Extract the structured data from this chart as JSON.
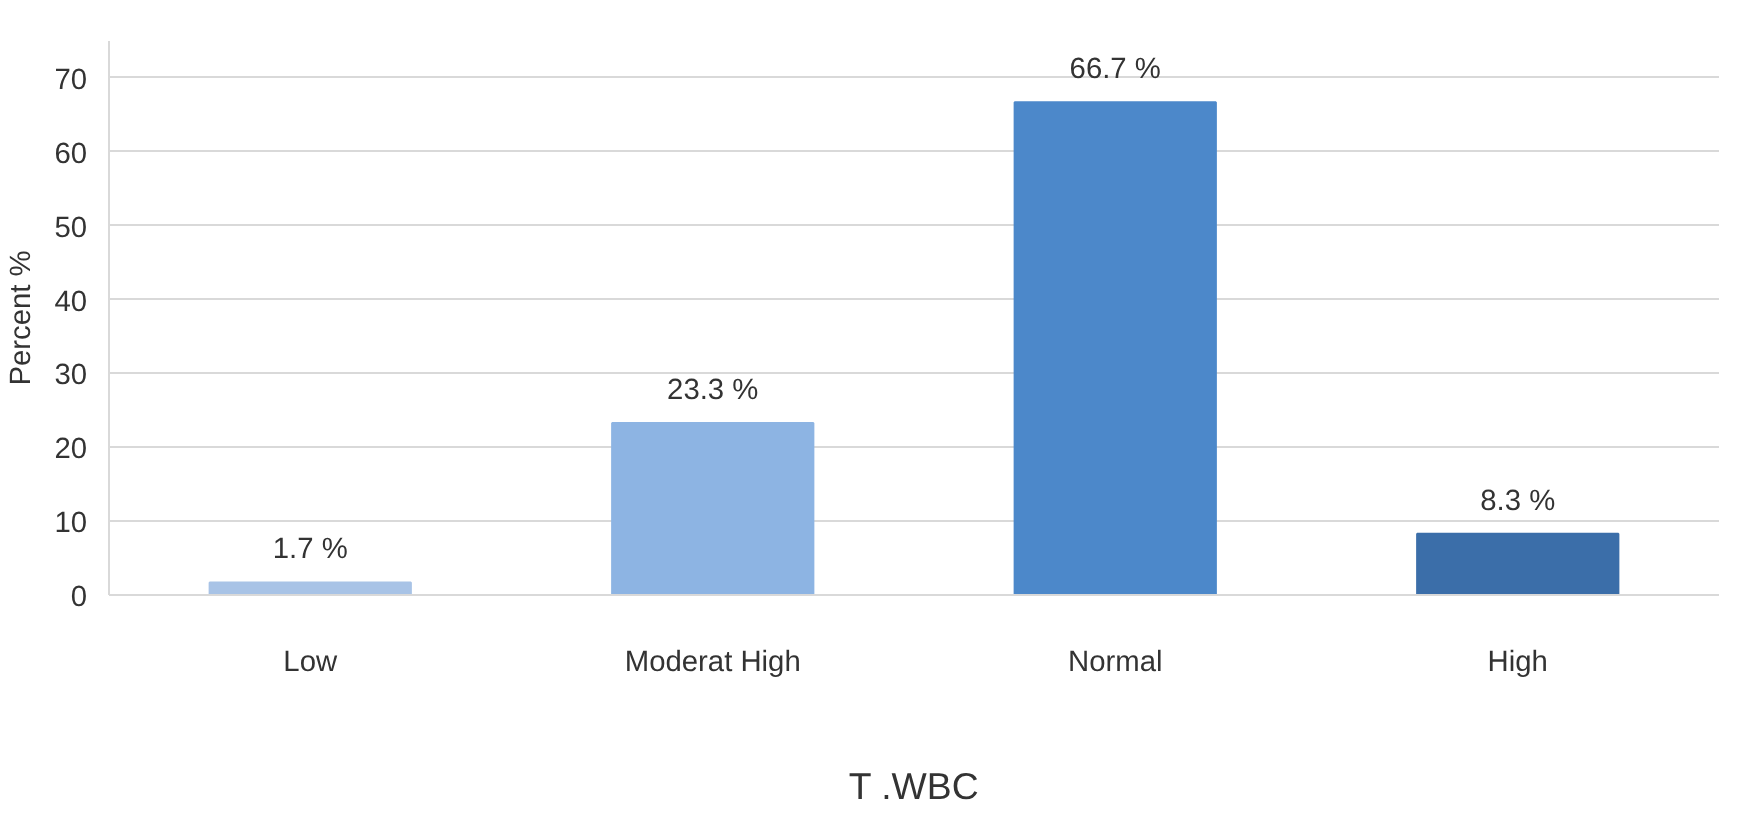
{
  "chart_data": {
    "type": "bar",
    "xlabel": "T .WBC",
    "ylabel": "Percent %",
    "categories": [
      "Low",
      "Moderat High",
      "Normal",
      "High"
    ],
    "values": [
      1.7,
      23.3,
      66.7,
      8.3
    ],
    "colors": [
      "#a8c3e6",
      "#8db4e3",
      "#4c88ca",
      "#3b6ea9"
    ],
    "value_labels": [
      "1.7 %",
      "23.3 %",
      "66.7 %",
      "8.3 %"
    ],
    "ylim": [
      0,
      75
    ],
    "yticks": [
      0,
      10,
      20,
      30,
      40,
      50,
      60,
      70
    ],
    "grid": "y"
  }
}
